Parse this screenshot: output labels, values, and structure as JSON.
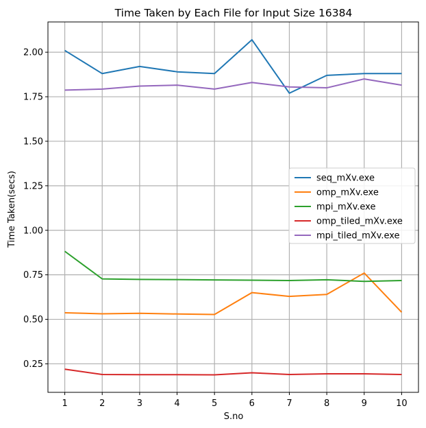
{
  "chart_data": {
    "type": "line",
    "title": "Time Taken by Each File for Input Size 16384",
    "xlabel": "S.no",
    "ylabel": "Time Taken(secs)",
    "x": [
      1,
      2,
      3,
      4,
      5,
      6,
      7,
      8,
      9,
      10
    ],
    "x_tick_labels": [
      "1",
      "2",
      "3",
      "4",
      "5",
      "6",
      "7",
      "8",
      "9",
      "10"
    ],
    "y_ticks": [
      0.25,
      0.5,
      0.75,
      1.0,
      1.25,
      1.5,
      1.75,
      2.0
    ],
    "y_tick_labels": [
      "0.25",
      "0.50",
      "0.75",
      "1.00",
      "1.25",
      "1.50",
      "1.75",
      "2.00"
    ],
    "xlim": [
      0.55,
      10.45
    ],
    "ylim": [
      0.09,
      2.17
    ],
    "grid": true,
    "legend_position": "center-right",
    "series": [
      {
        "name": "seq_mXv.exe",
        "color": "#1f77b4",
        "values": [
          2.01,
          1.88,
          1.92,
          1.89,
          1.88,
          2.07,
          1.77,
          1.87,
          1.88,
          1.88
        ]
      },
      {
        "name": "omp_mXv.exe",
        "color": "#ff7f0e",
        "values": [
          0.537,
          0.531,
          0.534,
          0.53,
          0.527,
          0.65,
          0.629,
          0.64,
          0.76,
          0.54
        ]
      },
      {
        "name": "mpi_mXv.exe",
        "color": "#2ca02c",
        "values": [
          0.882,
          0.727,
          0.724,
          0.723,
          0.721,
          0.72,
          0.718,
          0.722,
          0.713,
          0.718
        ]
      },
      {
        "name": "omp_tiled_mXv.exe",
        "color": "#d62728",
        "values": [
          0.22,
          0.19,
          0.189,
          0.189,
          0.188,
          0.2,
          0.19,
          0.194,
          0.194,
          0.19
        ]
      },
      {
        "name": "mpi_tiled_mXv.exe",
        "color": "#9467bd",
        "values": [
          1.787,
          1.793,
          1.81,
          1.815,
          1.793,
          1.83,
          1.805,
          1.8,
          1.85,
          1.815
        ]
      }
    ]
  }
}
